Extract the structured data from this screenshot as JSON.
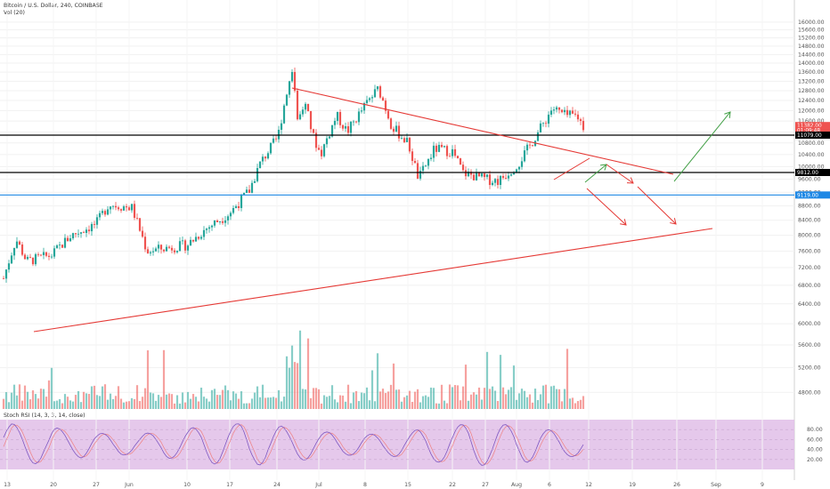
{
  "header": {
    "title": "Bitcoin / U.S. Dollar, 240, COINBASE",
    "volume_label": "Vol (20)"
  },
  "rsi": {
    "label": "Stoch RSI (14, 3, 3, 14, close)",
    "ticks": [
      "80.00",
      "60.00",
      "40.00",
      "20.00"
    ]
  },
  "colors": {
    "up": "#26a69a",
    "down": "#ef5350",
    "trendline": "#e53935",
    "level": "#000000",
    "support_blue": "#1e88e5",
    "arrow_up": "#43a047",
    "arrow_down": "#e53935",
    "rsi_band": "#e1bee7",
    "rsi_line": "#7e57c2"
  },
  "chart_data": {
    "type": "candlestick",
    "symbol": "Bitcoin / U.S. Dollar",
    "interval": "240",
    "exchange": "COINBASE",
    "y_scale": "log",
    "ylim": [
      4600,
      16800
    ],
    "y_ticks": [
      "16000.00",
      "15600.00",
      "15200.00",
      "14800.00",
      "14400.00",
      "14000.00",
      "13600.00",
      "13200.00",
      "12800.00",
      "12400.00",
      "12000.00",
      "11600.00",
      "11200.00",
      "10800.00",
      "10400.00",
      "10000.00",
      "9600.00",
      "9200.00",
      "8800.00",
      "8400.00",
      "8000.00",
      "7600.00",
      "7200.00",
      "6800.00",
      "6400.00",
      "6000.00",
      "5600.00",
      "5200.00",
      "4800.00"
    ],
    "x_ticks": [
      "13",
      "20",
      "27",
      "Jun",
      "10",
      "17",
      "24",
      "Jul",
      "8",
      "15",
      "22",
      "27",
      "Aug",
      "6",
      "12",
      "19",
      "26",
      "Sep",
      "9"
    ],
    "price_path": [
      [
        "13",
        6950
      ],
      [
        "15",
        7900
      ],
      [
        "17",
        7350
      ],
      [
        "20",
        7500
      ],
      [
        "23",
        8000
      ],
      [
        "27",
        8300
      ],
      [
        "30",
        8850
      ],
      [
        "Jun",
        8750
      ],
      [
        "04",
        7600
      ],
      [
        "10",
        7750
      ],
      [
        "13",
        8150
      ],
      [
        "17",
        8600
      ],
      [
        "20",
        9250
      ],
      [
        "22",
        10100
      ],
      [
        "24",
        11000
      ],
      [
        "26",
        13800
      ],
      [
        "27",
        11500
      ],
      [
        "28",
        12300
      ],
      [
        "30",
        11000
      ],
      [
        "Jul",
        10400
      ],
      [
        "03",
        11800
      ],
      [
        "05",
        11200
      ],
      [
        "08",
        12300
      ],
      [
        "10",
        12900
      ],
      [
        "12",
        11400
      ],
      [
        "15",
        10800
      ],
      [
        "17",
        9600
      ],
      [
        "19",
        10600
      ],
      [
        "22",
        10500
      ],
      [
        "24",
        9800
      ],
      [
        "27",
        9600
      ],
      [
        "29",
        9550
      ],
      [
        "Aug",
        10100
      ],
      [
        "03",
        10700
      ],
      [
        "05",
        11600
      ],
      [
        "06",
        12100
      ],
      [
        "08",
        11800
      ],
      [
        "10",
        11800
      ],
      [
        "11",
        11400
      ]
    ],
    "price_tags": [
      {
        "label": "11382.00",
        "color": "#ef5350"
      },
      {
        "label": "01:09:48",
        "color": "#ef5350"
      },
      {
        "label": "11079.00",
        "color": "#000000"
      },
      {
        "label": "9812.00",
        "color": "#000000"
      },
      {
        "label": "9119.00",
        "color": "#1e88e5"
      }
    ],
    "horizontal_levels": [
      11079,
      9812,
      9119
    ],
    "volume_ticks": [],
    "annotations": [
      "descending trendline from peak",
      "ascending support trendline",
      "green continuation arrows",
      "red breakdown arrows"
    ]
  }
}
